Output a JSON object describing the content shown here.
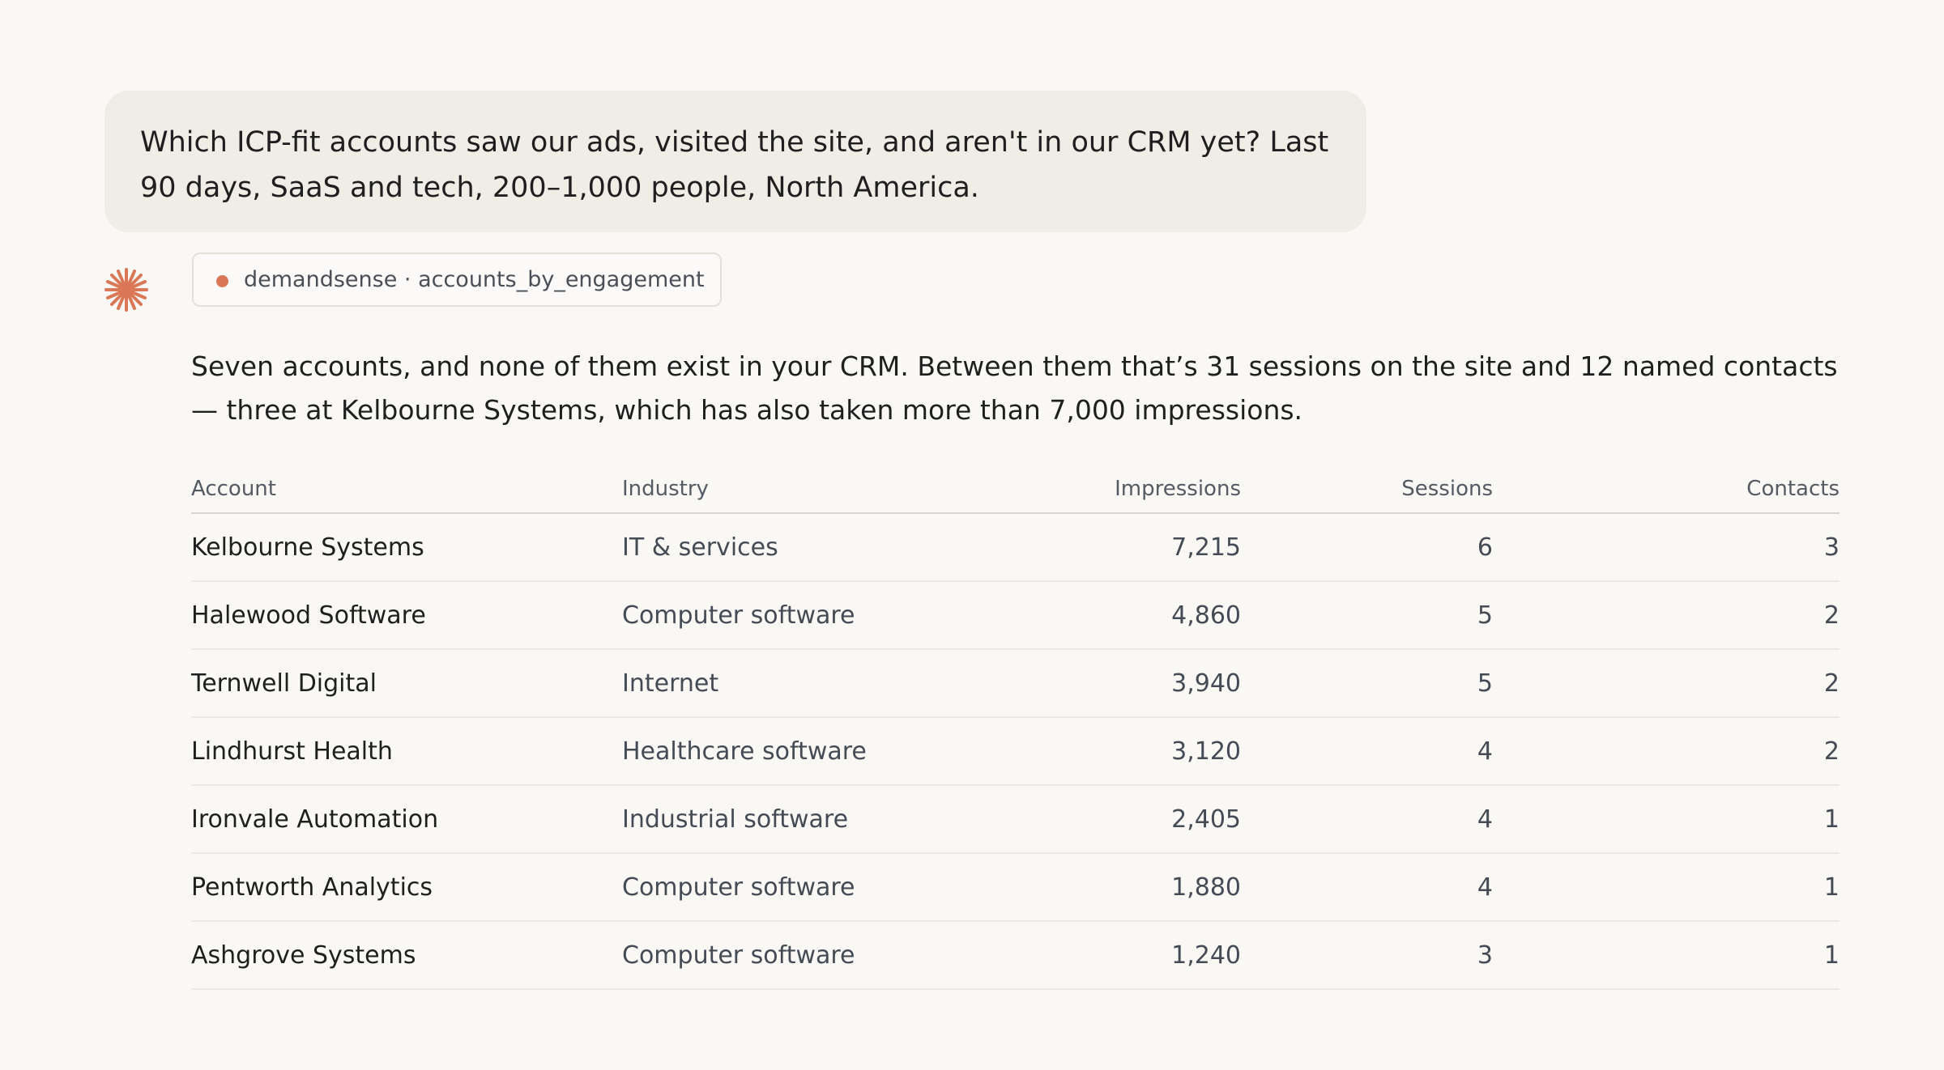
{
  "user_message": "Which ICP-fit accounts saw our ads, visited the site, and aren't in our CRM yet? Last 90 days, SaaS and tech, 200–1,000 people, North America.",
  "tool_chip": "demandsense · accounts_by_engagement",
  "reply": "Seven accounts, and none of them exist in your CRM. Between them that’s 31 sessions on the site and 12 named contacts — three at Kelbourne Systems, which has also taken more than 7,000 impressions.",
  "table": {
    "headers": [
      "Account",
      "Industry",
      "Impressions",
      "Sessions",
      "Contacts"
    ],
    "rows": [
      [
        "Kelbourne Systems",
        "IT & services",
        "7,215",
        "6",
        "3"
      ],
      [
        "Halewood Software",
        "Computer software",
        "4,860",
        "5",
        "2"
      ],
      [
        "Ternwell Digital",
        "Internet",
        "3,940",
        "5",
        "2"
      ],
      [
        "Lindhurst Health",
        "Healthcare software",
        "3,120",
        "4",
        "2"
      ],
      [
        "Ironvale Automation",
        "Industrial software",
        "2,405",
        "4",
        "1"
      ],
      [
        "Pentworth Analytics",
        "Computer software",
        "1,880",
        "4",
        "1"
      ],
      [
        "Ashgrove Systems",
        "Computer software",
        "1,240",
        "3",
        "1"
      ]
    ]
  }
}
